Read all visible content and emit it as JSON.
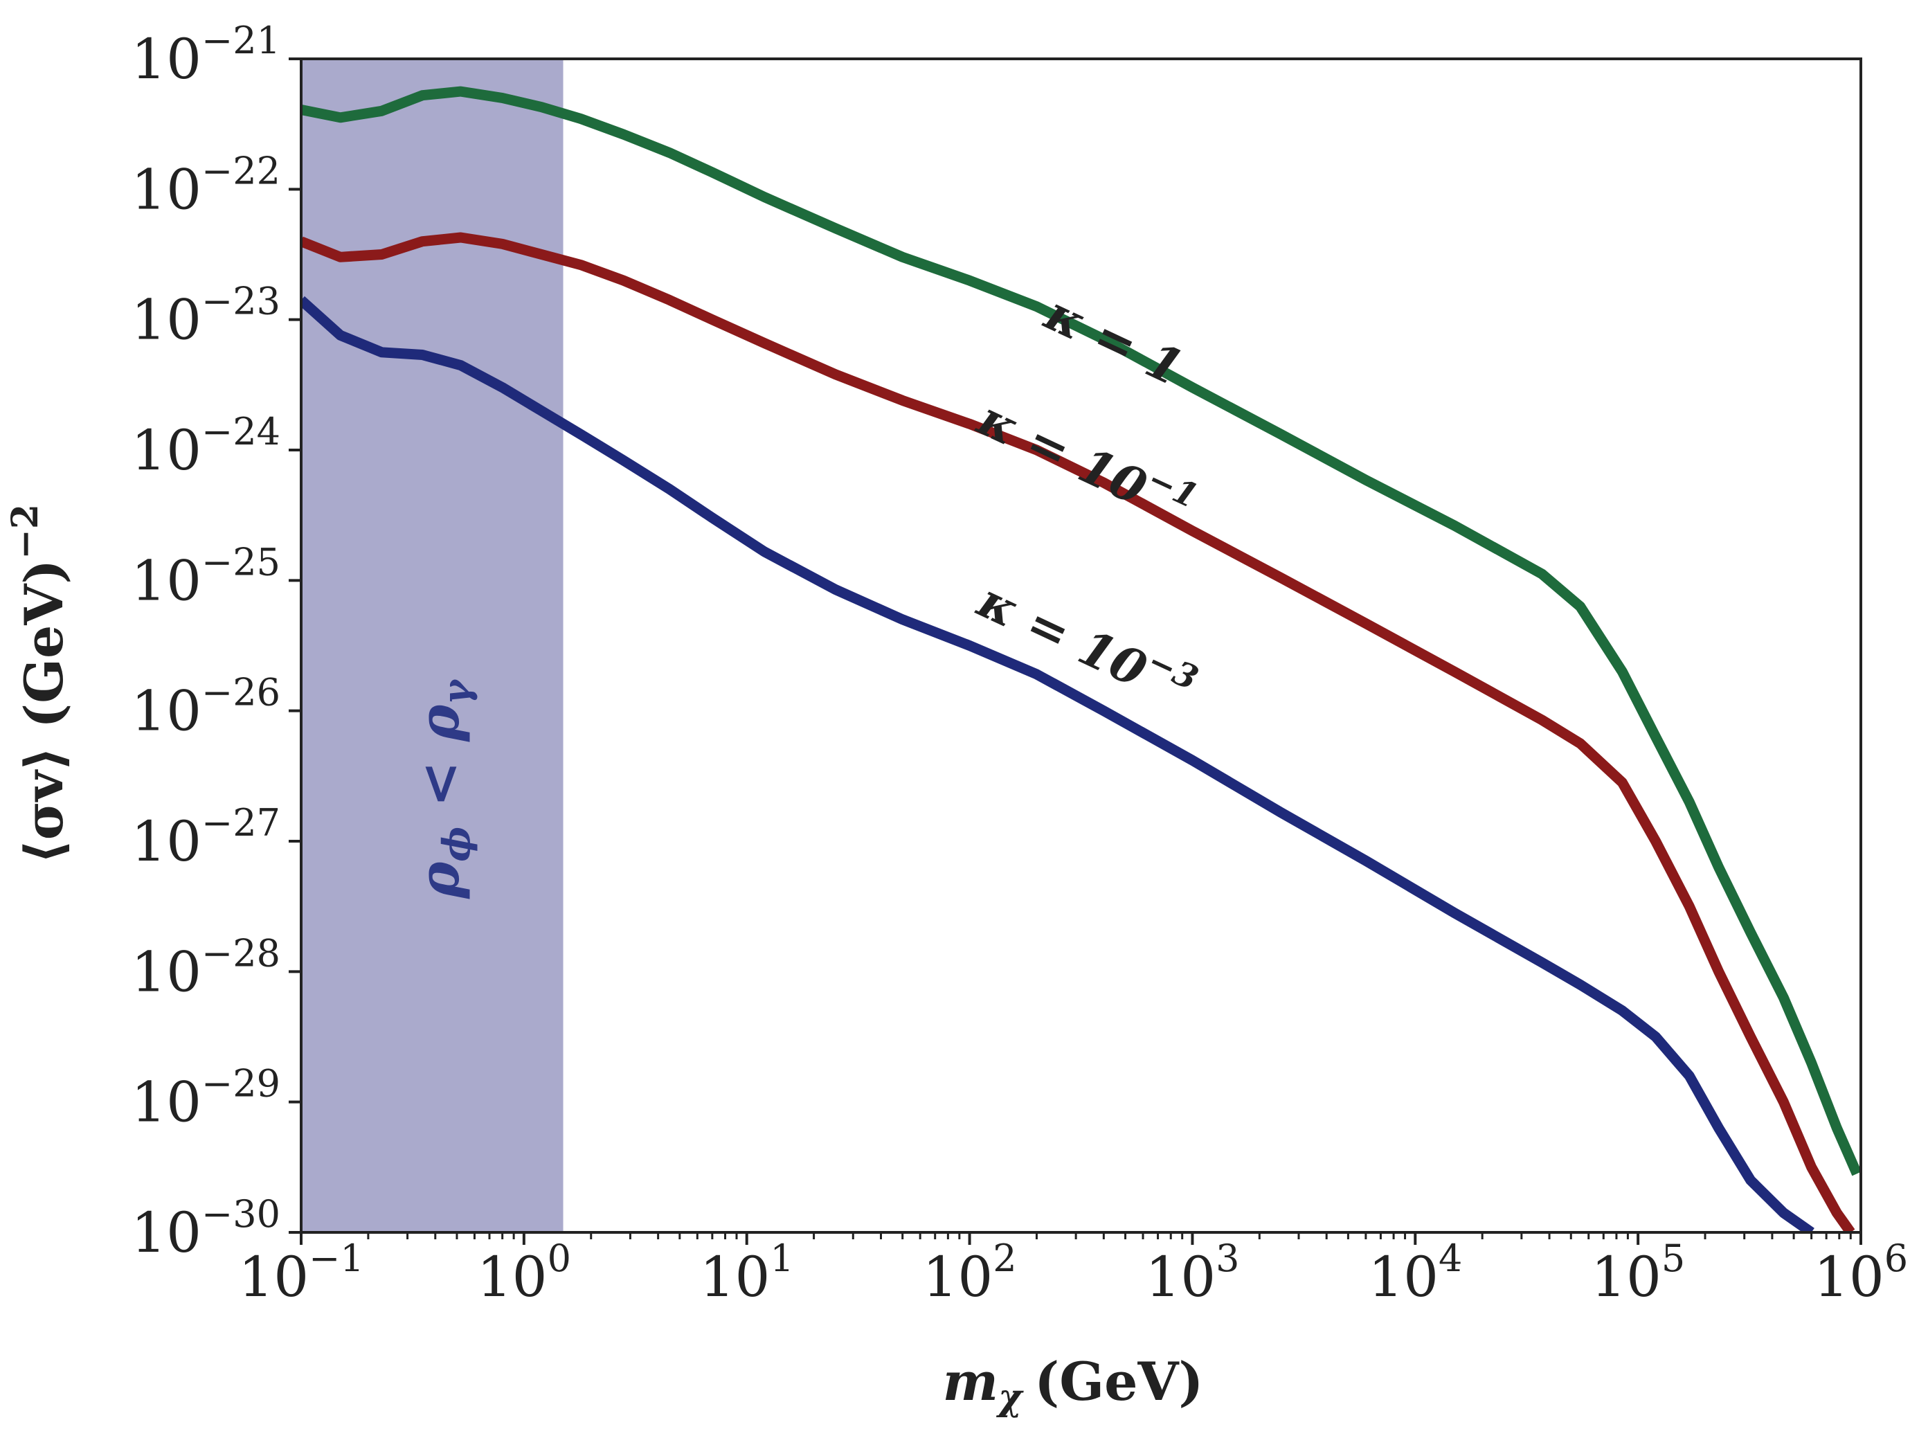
{
  "chart_data": {
    "type": "line",
    "title": "",
    "xlabel_main": "m",
    "xlabel_sub": "χ",
    "xlabel_unit": "(GeV)",
    "ylabel_main": "⟨σv⟩ (GeV)",
    "ylabel_sup": "−2",
    "x_scale": "log",
    "y_scale": "log",
    "xlim": [
      0.1,
      1000000
    ],
    "ylim": [
      1e-30,
      1e-21
    ],
    "x_ticks": [
      {
        "base": "10",
        "exp": "−1",
        "value": 0.1
      },
      {
        "base": "10",
        "exp": "0",
        "value": 1
      },
      {
        "base": "10",
        "exp": "1",
        "value": 10
      },
      {
        "base": "10",
        "exp": "2",
        "value": 100
      },
      {
        "base": "10",
        "exp": "3",
        "value": 1000
      },
      {
        "base": "10",
        "exp": "4",
        "value": 10000
      },
      {
        "base": "10",
        "exp": "5",
        "value": 100000
      },
      {
        "base": "10",
        "exp": "6",
        "value": 1000000
      }
    ],
    "y_ticks": [
      {
        "base": "10",
        "exp": "−21",
        "value": -21
      },
      {
        "base": "10",
        "exp": "−22",
        "value": -22
      },
      {
        "base": "10",
        "exp": "−23",
        "value": -23
      },
      {
        "base": "10",
        "exp": "−24",
        "value": -24
      },
      {
        "base": "10",
        "exp": "−25",
        "value": -25
      },
      {
        "base": "10",
        "exp": "−26",
        "value": -26
      },
      {
        "base": "10",
        "exp": "−27",
        "value": -27
      },
      {
        "base": "10",
        "exp": "−28",
        "value": -28
      },
      {
        "base": "10",
        "exp": "−29",
        "value": -29
      },
      {
        "base": "10",
        "exp": "−30",
        "value": -30
      }
    ],
    "shaded_region": {
      "x_range": [
        0.1,
        1.5
      ],
      "color": "#aaaacc",
      "label": "ρ",
      "label_sub1": "ϕ",
      "label_mid": " < ρ",
      "label_sub2": "γ",
      "label_color": "#2e3a87"
    },
    "series": [
      {
        "name": "κ = 1",
        "label_base": "κ = 1",
        "label_exp": "",
        "color": "#1e6b3c",
        "points": [
          [
            0.1,
            -21.39
          ],
          [
            0.15,
            -21.45
          ],
          [
            0.23,
            -21.4
          ],
          [
            0.35,
            -21.28
          ],
          [
            0.52,
            -21.25
          ],
          [
            0.8,
            -21.3
          ],
          [
            1.2,
            -21.37
          ],
          [
            1.8,
            -21.46
          ],
          [
            2.8,
            -21.58
          ],
          [
            4.5,
            -21.72
          ],
          [
            7,
            -21.87
          ],
          [
            12,
            -22.06
          ],
          [
            25,
            -22.3
          ],
          [
            50,
            -22.52
          ],
          [
            100,
            -22.7
          ],
          [
            200,
            -22.9
          ],
          [
            400,
            -23.15
          ],
          [
            1000,
            -23.52
          ],
          [
            2500,
            -23.88
          ],
          [
            6000,
            -24.23
          ],
          [
            15000,
            -24.58
          ],
          [
            37000,
            -24.95
          ],
          [
            55000,
            -25.2
          ],
          [
            85000,
            -25.7
          ],
          [
            120000,
            -26.2
          ],
          [
            170000,
            -26.7
          ],
          [
            230000,
            -27.2
          ],
          [
            320000,
            -27.7
          ],
          [
            450000,
            -28.2
          ],
          [
            600000,
            -28.7
          ],
          [
            780000,
            -29.2
          ],
          [
            960000,
            -29.55
          ]
        ]
      },
      {
        "name": "κ = 10−1",
        "label_base": "κ = 10",
        "label_exp": "−1",
        "color": "#8b1a1a",
        "points": [
          [
            0.1,
            -22.4
          ],
          [
            0.15,
            -22.52
          ],
          [
            0.23,
            -22.5
          ],
          [
            0.35,
            -22.4
          ],
          [
            0.52,
            -22.37
          ],
          [
            0.8,
            -22.42
          ],
          [
            1.2,
            -22.5
          ],
          [
            1.8,
            -22.58
          ],
          [
            2.8,
            -22.7
          ],
          [
            4.5,
            -22.85
          ],
          [
            7,
            -23.0
          ],
          [
            12,
            -23.18
          ],
          [
            25,
            -23.42
          ],
          [
            50,
            -23.62
          ],
          [
            100,
            -23.8
          ],
          [
            200,
            -24.0
          ],
          [
            400,
            -24.25
          ],
          [
            1000,
            -24.62
          ],
          [
            2500,
            -24.98
          ],
          [
            6000,
            -25.33
          ],
          [
            15000,
            -25.7
          ],
          [
            37000,
            -26.07
          ],
          [
            55000,
            -26.25
          ],
          [
            85000,
            -26.55
          ],
          [
            120000,
            -27.0
          ],
          [
            170000,
            -27.5
          ],
          [
            230000,
            -28.0
          ],
          [
            320000,
            -28.5
          ],
          [
            450000,
            -29.0
          ],
          [
            600000,
            -29.5
          ],
          [
            780000,
            -29.85
          ],
          [
            900000,
            -30.0
          ]
        ]
      },
      {
        "name": "κ = 10−3",
        "label_base": "κ = 10",
        "label_exp": "−3",
        "color": "#1f2a7a",
        "points": [
          [
            0.1,
            -22.85
          ],
          [
            0.15,
            -23.12
          ],
          [
            0.23,
            -23.25
          ],
          [
            0.35,
            -23.27
          ],
          [
            0.52,
            -23.35
          ],
          [
            0.8,
            -23.52
          ],
          [
            1.2,
            -23.7
          ],
          [
            1.8,
            -23.88
          ],
          [
            2.8,
            -24.08
          ],
          [
            4.5,
            -24.3
          ],
          [
            7,
            -24.52
          ],
          [
            12,
            -24.78
          ],
          [
            25,
            -25.07
          ],
          [
            50,
            -25.3
          ],
          [
            100,
            -25.5
          ],
          [
            200,
            -25.72
          ],
          [
            400,
            -26.0
          ],
          [
            1000,
            -26.38
          ],
          [
            2500,
            -26.78
          ],
          [
            6000,
            -27.15
          ],
          [
            15000,
            -27.55
          ],
          [
            37000,
            -27.93
          ],
          [
            55000,
            -28.1
          ],
          [
            85000,
            -28.3
          ],
          [
            120000,
            -28.5
          ],
          [
            170000,
            -28.8
          ],
          [
            230000,
            -29.2
          ],
          [
            320000,
            -29.6
          ],
          [
            450000,
            -29.85
          ],
          [
            600000,
            -30.0
          ]
        ]
      }
    ]
  }
}
